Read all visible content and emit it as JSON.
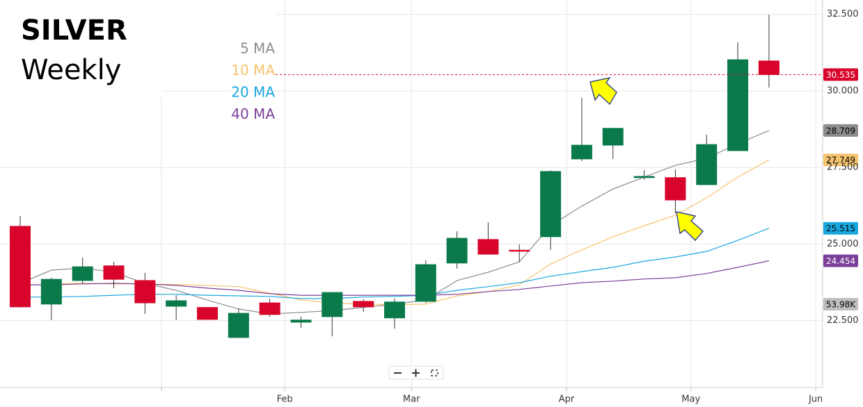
{
  "chart_data": {
    "type": "candlestick",
    "title": "SILVER",
    "subtitle": "Weekly",
    "up_color": "#0b7a4b",
    "down_color": "#d9042b",
    "candles": {
      "open": [
        25.58,
        23.04,
        23.81,
        24.29,
        23.81,
        22.97,
        22.93,
        21.95,
        23.08,
        22.45,
        22.63,
        23.13,
        22.59,
        23.13,
        24.38,
        25.15,
        24.8,
        25.24,
        27.78,
        28.23,
        27.17,
        27.17,
        26.94,
        28.05,
        30.98
      ],
      "high": [
        25.92,
        23.9,
        24.56,
        24.42,
        24.06,
        23.33,
        22.95,
        22.9,
        23.22,
        22.63,
        23.42,
        23.2,
        23.22,
        24.47,
        25.42,
        25.71,
        24.99,
        27.41,
        29.77,
        28.78,
        27.41,
        27.44,
        28.57,
        31.59,
        32.49
      ],
      "low": [
        22.93,
        22.52,
        23.7,
        23.56,
        22.72,
        22.52,
        22.52,
        21.93,
        22.63,
        22.27,
        21.99,
        22.79,
        22.24,
        23.08,
        24.2,
        24.65,
        24.42,
        24.81,
        27.71,
        27.78,
        27.1,
        26.01,
        26.94,
        28.05,
        30.11
      ],
      "close": [
        22.95,
        23.85,
        24.26,
        23.85,
        23.08,
        23.15,
        22.54,
        22.74,
        22.7,
        22.52,
        23.42,
        22.95,
        23.11,
        24.33,
        25.19,
        24.67,
        24.79,
        27.37,
        28.23,
        28.78,
        27.21,
        26.44,
        28.25,
        31.02,
        30.535
      ]
    },
    "series": [
      {
        "name": "5 MA",
        "color": "#8c8c8c",
        "values": [
          23.72,
          24.15,
          24.22,
          24.08,
          23.72,
          23.49,
          23.17,
          22.88,
          22.72,
          22.77,
          22.83,
          22.93,
          23.04,
          23.17,
          23.81,
          24.08,
          24.42,
          25.6,
          26.24,
          26.8,
          27.19,
          27.57,
          27.8,
          28.28,
          28.709
        ]
      },
      {
        "name": "10 MA",
        "color": "#f6c36e",
        "values": [
          null,
          23.7,
          23.72,
          23.7,
          23.7,
          23.68,
          23.65,
          23.61,
          23.4,
          23.18,
          23.08,
          23.04,
          23.02,
          23.04,
          23.31,
          23.45,
          23.67,
          24.35,
          24.81,
          25.24,
          25.6,
          25.94,
          26.51,
          27.19,
          27.749
        ]
      },
      {
        "name": "20 MA",
        "color": "#18a8df",
        "values": [
          23.27,
          23.27,
          23.29,
          23.33,
          23.36,
          23.36,
          23.33,
          23.31,
          23.29,
          23.22,
          23.22,
          23.27,
          23.29,
          23.33,
          23.49,
          23.61,
          23.74,
          23.95,
          24.1,
          24.24,
          24.44,
          24.58,
          24.76,
          25.12,
          25.515
        ]
      },
      {
        "name": "40 MA",
        "color": "#7b3f99",
        "values": [
          23.67,
          23.67,
          23.7,
          23.72,
          23.7,
          23.65,
          23.56,
          23.49,
          23.38,
          23.33,
          23.33,
          23.33,
          23.33,
          23.33,
          23.36,
          23.45,
          23.52,
          23.63,
          23.74,
          23.79,
          23.86,
          23.9,
          24.04,
          24.24,
          24.454
        ]
      }
    ],
    "volume_label": "53.98K",
    "xlim": [
      -0.647,
      25.72
    ],
    "xticks": [
      {
        "value": 4.53,
        "label": null
      },
      {
        "value": 8.48,
        "label": "Feb"
      },
      {
        "value": 12.54,
        "label": "Mar"
      },
      {
        "value": 17.51,
        "label": "Apr"
      },
      {
        "value": 21.5,
        "label": "May"
      },
      {
        "value": 25.5,
        "label": "Jun"
      }
    ],
    "ylim": [
      20.27,
      32.97
    ],
    "yticks": [
      {
        "value": 22.5,
        "label": "22.500"
      },
      {
        "value": 25,
        "label": "25.000"
      },
      {
        "value": 27.5,
        "label": "27.500"
      },
      {
        "value": 30,
        "label": "30.000"
      },
      {
        "value": 32.5,
        "label": "32.500"
      }
    ],
    "grid": true
  }
}
